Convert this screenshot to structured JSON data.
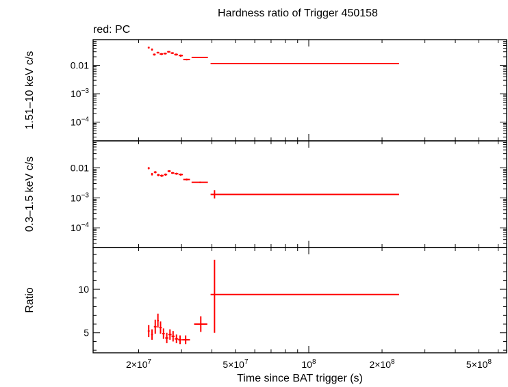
{
  "title": "Hardness ratio of Trigger 450158",
  "legend": "red: PC",
  "colors": {
    "data": "#ff0000",
    "axes": "#000000"
  },
  "x_axis": {
    "label": "Time since BAT trigger (s)",
    "scale": "log",
    "range": [
      13000000,
      650000000
    ],
    "ticks": [
      {
        "value": 20000000,
        "mantissa": "2×10",
        "exp": "7"
      },
      {
        "value": 50000000,
        "mantissa": "5×10",
        "exp": "7"
      },
      {
        "value": 100000000,
        "mantissa": "10",
        "exp": "8"
      },
      {
        "value": 200000000,
        "mantissa": "2×10",
        "exp": "8"
      },
      {
        "value": 500000000,
        "mantissa": "5×10",
        "exp": "8"
      }
    ]
  },
  "chart_data": [
    {
      "type": "scatter",
      "ylabel": "1.51–10 keV c/s",
      "yscale": "log",
      "ylim": [
        2.2e-05,
        0.08
      ],
      "yticks": [
        {
          "value": 0.01,
          "text": "0.01",
          "mantissa": "",
          "exp": ""
        },
        {
          "value": 0.001,
          "text": "",
          "mantissa": "10",
          "exp": "−3"
        },
        {
          "value": 0.0001,
          "text": "",
          "mantissa": "10",
          "exp": "−4"
        }
      ],
      "points": [
        {
          "x": 22000000,
          "xlo": 21800000,
          "xhi": 22200000,
          "y": 0.042,
          "ylo": 0.039,
          "yhi": 0.045
        },
        {
          "x": 22700000,
          "xlo": 22500000,
          "xhi": 22900000,
          "y": 0.036,
          "ylo": 0.033,
          "yhi": 0.039
        },
        {
          "x": 23200000,
          "xlo": 22900000,
          "xhi": 23500000,
          "y": 0.024,
          "ylo": 0.022,
          "yhi": 0.026
        },
        {
          "x": 24000000,
          "xlo": 23700000,
          "xhi": 24300000,
          "y": 0.028,
          "ylo": 0.026,
          "yhi": 0.03
        },
        {
          "x": 24800000,
          "xlo": 24400000,
          "xhi": 25200000,
          "y": 0.025,
          "ylo": 0.023,
          "yhi": 0.027
        },
        {
          "x": 25700000,
          "xlo": 25300000,
          "xhi": 26100000,
          "y": 0.026,
          "ylo": 0.024,
          "yhi": 0.028
        },
        {
          "x": 26600000,
          "xlo": 26200000,
          "xhi": 27000000,
          "y": 0.03,
          "ylo": 0.028,
          "yhi": 0.032
        },
        {
          "x": 27500000,
          "xlo": 27100000,
          "xhi": 27900000,
          "y": 0.027,
          "ylo": 0.025,
          "yhi": 0.029
        },
        {
          "x": 28500000,
          "xlo": 28000000,
          "xhi": 29000000,
          "y": 0.024,
          "ylo": 0.022,
          "yhi": 0.026
        },
        {
          "x": 29800000,
          "xlo": 29200000,
          "xhi": 30400000,
          "y": 0.022,
          "ylo": 0.02,
          "yhi": 0.024
        },
        {
          "x": 31500000,
          "xlo": 30500000,
          "xhi": 32500000,
          "y": 0.016,
          "ylo": 0.015,
          "yhi": 0.017
        },
        {
          "x": 35800000,
          "xlo": 33000000,
          "xhi": 38500000,
          "y": 0.019,
          "ylo": 0.018,
          "yhi": 0.02
        },
        {
          "x": 41000000,
          "xlo": 39500000,
          "xhi": 235000000,
          "y": 0.0115,
          "ylo": 0.0109,
          "yhi": 0.0121
        }
      ]
    },
    {
      "type": "scatter",
      "ylabel": "0.3–1.5 keV c/s",
      "yscale": "log",
      "ylim": [
        2.2e-05,
        0.08
      ],
      "yticks": [
        {
          "value": 0.01,
          "text": "0.01",
          "mantissa": "",
          "exp": ""
        },
        {
          "value": 0.001,
          "text": "",
          "mantissa": "10",
          "exp": "−3"
        },
        {
          "value": 0.0001,
          "text": "",
          "mantissa": "10",
          "exp": "−4"
        }
      ],
      "points": [
        {
          "x": 22000000,
          "xlo": 21800000,
          "xhi": 22200000,
          "y": 0.0098,
          "ylo": 0.009,
          "yhi": 0.0106
        },
        {
          "x": 22700000,
          "xlo": 22500000,
          "xhi": 22900000,
          "y": 0.0062,
          "ylo": 0.0056,
          "yhi": 0.0068
        },
        {
          "x": 23400000,
          "xlo": 23100000,
          "xhi": 23700000,
          "y": 0.0072,
          "ylo": 0.0066,
          "yhi": 0.0078
        },
        {
          "x": 24100000,
          "xlo": 23800000,
          "xhi": 24400000,
          "y": 0.0058,
          "ylo": 0.0053,
          "yhi": 0.0063
        },
        {
          "x": 24900000,
          "xlo": 24500000,
          "xhi": 25300000,
          "y": 0.0055,
          "ylo": 0.005,
          "yhi": 0.006
        },
        {
          "x": 25800000,
          "xlo": 25400000,
          "xhi": 26200000,
          "y": 0.006,
          "ylo": 0.0055,
          "yhi": 0.0065
        },
        {
          "x": 26700000,
          "xlo": 26300000,
          "xhi": 27100000,
          "y": 0.0078,
          "ylo": 0.0072,
          "yhi": 0.0084
        },
        {
          "x": 27600000,
          "xlo": 27200000,
          "xhi": 28000000,
          "y": 0.0068,
          "ylo": 0.0063,
          "yhi": 0.0073
        },
        {
          "x": 28600000,
          "xlo": 28100000,
          "xhi": 29100000,
          "y": 0.0064,
          "ylo": 0.0059,
          "yhi": 0.0069
        },
        {
          "x": 29800000,
          "xlo": 29200000,
          "xhi": 30400000,
          "y": 0.006,
          "ylo": 0.0055,
          "yhi": 0.0065
        },
        {
          "x": 31500000,
          "xlo": 30500000,
          "xhi": 32500000,
          "y": 0.0041,
          "ylo": 0.0038,
          "yhi": 0.0044
        },
        {
          "x": 35800000,
          "xlo": 33000000,
          "xhi": 38500000,
          "y": 0.0033,
          "ylo": 0.0031,
          "yhi": 0.0035
        },
        {
          "x": 41000000,
          "xlo": 39500000,
          "xhi": 235000000,
          "y": 0.0013,
          "ylo": 0.00095,
          "yhi": 0.0018
        }
      ]
    },
    {
      "type": "scatter",
      "ylabel": "Ratio",
      "yscale": "linear",
      "ylim": [
        2.7,
        14.8
      ],
      "yticks": [
        {
          "value": 10,
          "text": "10",
          "mantissa": "",
          "exp": ""
        },
        {
          "value": 5,
          "text": "5",
          "mantissa": "",
          "exp": ""
        }
      ],
      "points": [
        {
          "x": 22000000,
          "xlo": 21800000,
          "xhi": 22200000,
          "y": 5.2,
          "ylo": 4.5,
          "yhi": 5.9
        },
        {
          "x": 22700000,
          "xlo": 22500000,
          "xhi": 22900000,
          "y": 4.8,
          "ylo": 4.2,
          "yhi": 5.4
        },
        {
          "x": 23400000,
          "xlo": 23100000,
          "xhi": 23700000,
          "y": 5.7,
          "ylo": 4.9,
          "yhi": 6.5
        },
        {
          "x": 24000000,
          "xlo": 23800000,
          "xhi": 24200000,
          "y": 6.4,
          "ylo": 5.6,
          "yhi": 7.2
        },
        {
          "x": 24600000,
          "xlo": 24300000,
          "xhi": 24900000,
          "y": 5.6,
          "ylo": 4.9,
          "yhi": 6.3
        },
        {
          "x": 25300000,
          "xlo": 25000000,
          "xhi": 25600000,
          "y": 4.9,
          "ylo": 4.3,
          "yhi": 5.5
        },
        {
          "x": 26100000,
          "xlo": 25700000,
          "xhi": 26500000,
          "y": 4.4,
          "ylo": 3.8,
          "yhi": 5.0
        },
        {
          "x": 26900000,
          "xlo": 26500000,
          "xhi": 27300000,
          "y": 4.8,
          "ylo": 4.2,
          "yhi": 5.4
        },
        {
          "x": 27700000,
          "xlo": 27300000,
          "xhi": 28100000,
          "y": 4.6,
          "ylo": 4.0,
          "yhi": 5.2
        },
        {
          "x": 28600000,
          "xlo": 28100000,
          "xhi": 29100000,
          "y": 4.3,
          "ylo": 3.8,
          "yhi": 4.8
        },
        {
          "x": 29600000,
          "xlo": 29100000,
          "xhi": 30100000,
          "y": 4.2,
          "ylo": 3.7,
          "yhi": 4.7
        },
        {
          "x": 31200000,
          "xlo": 30200000,
          "xhi": 32500000,
          "y": 4.2,
          "ylo": 3.7,
          "yhi": 4.7
        },
        {
          "x": 36000000,
          "xlo": 33800000,
          "xhi": 38300000,
          "y": 6.0,
          "ylo": 5.1,
          "yhi": 6.9
        },
        {
          "x": 41000000,
          "xlo": 39500000,
          "xhi": 235000000,
          "y": 9.4,
          "ylo": 5.0,
          "yhi": 13.4
        }
      ]
    }
  ]
}
